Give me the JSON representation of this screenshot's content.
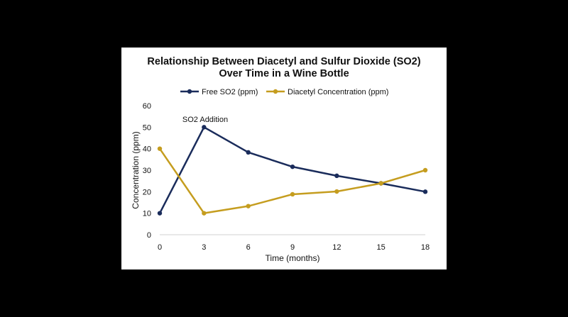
{
  "chart_data": {
    "type": "line",
    "title_lines": [
      "Relationship Between Diacetyl and Sulfur Dioxide (SO2)",
      "Over Time in a Wine Bottle"
    ],
    "xlabel": "Time (months)",
    "ylabel": "Concentration (ppm)",
    "x": [
      0,
      3,
      6,
      9,
      12,
      15,
      18
    ],
    "xticks": [
      "0",
      "3",
      "6",
      "9",
      "12",
      "15",
      "18"
    ],
    "yticks": [
      "0",
      "10",
      "20",
      "30",
      "40",
      "50",
      "60"
    ],
    "ylim": [
      0,
      60
    ],
    "xlim": [
      0,
      18
    ],
    "legend_position": "top",
    "grid": false,
    "series": [
      {
        "name": "Free SO2 (ppm)",
        "color": "#1a2c5b",
        "values": [
          10,
          50,
          38.3,
          31.6,
          27.4,
          23.9,
          20
        ]
      },
      {
        "name": "Diacetyl Concentration (ppm)",
        "color": "#c59d1f",
        "values": [
          40,
          10,
          13.3,
          18.8,
          20.1,
          23.9,
          30
        ]
      }
    ],
    "annotations": [
      {
        "text": "SO2 Addition",
        "x": 3,
        "y": 50
      }
    ]
  }
}
